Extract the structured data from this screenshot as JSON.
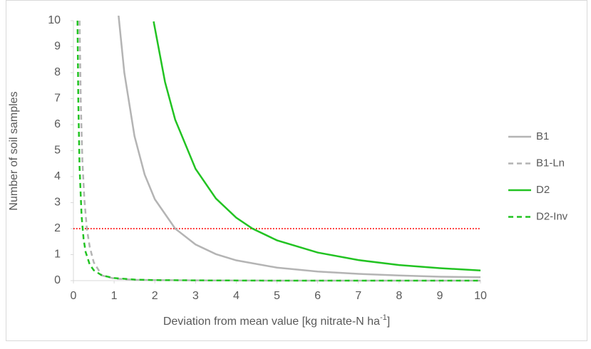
{
  "chart_data": {
    "type": "line",
    "ylabel": "Number of soil samples",
    "xlabel": {
      "text": "Deviation from mean value [kg nitrate-N ha",
      "sup": "-1",
      "end": "]"
    },
    "xlim": [
      0,
      10
    ],
    "xticks": [
      0,
      1,
      2,
      3,
      4,
      5,
      6,
      7,
      8,
      9,
      10
    ],
    "ylim": [
      0,
      10
    ],
    "yticks": [
      0,
      1,
      2,
      3,
      4,
      5,
      6,
      7,
      8,
      9,
      10
    ],
    "reference_line": {
      "value": 2,
      "color": "#ff0000"
    },
    "legend": "right",
    "series": [
      {
        "name": "B1",
        "color": "#b4b4b4",
        "dashed": false,
        "x": [
          1.1,
          1.25,
          1.5,
          1.75,
          2,
          2.5,
          3,
          3.5,
          4,
          5,
          6,
          7,
          8,
          9,
          10
        ],
        "values": [
          10.33,
          8,
          5.56,
          4.08,
          3.13,
          2,
          1.39,
          1.02,
          0.78,
          0.5,
          0.35,
          0.26,
          0.2,
          0.15,
          0.13
        ]
      },
      {
        "name": "B1-Ln",
        "color": "#b4b4b4",
        "dashed": true,
        "x": [
          0.15,
          0.18,
          0.22,
          0.27,
          0.33,
          0.4,
          0.5,
          0.7,
          1,
          1.5,
          2,
          3,
          5,
          10
        ],
        "values": [
          10,
          6.9,
          4.6,
          3.1,
          2,
          1.3,
          0.7,
          0.2,
          0.08,
          0.03,
          0.02,
          0.01,
          0,
          0
        ]
      },
      {
        "name": "D2",
        "color": "#22c322",
        "dashed": false,
        "x": [
          1.97,
          2.25,
          2.5,
          3,
          3.5,
          4,
          4.4,
          5,
          6,
          7,
          8,
          9,
          10
        ],
        "values": [
          9.97,
          7.64,
          6.19,
          4.3,
          3.16,
          2.42,
          2,
          1.55,
          1.08,
          0.79,
          0.6,
          0.48,
          0.39
        ]
      },
      {
        "name": "D2-Inv",
        "color": "#22c322",
        "dashed": true,
        "x": [
          0.1,
          0.12,
          0.15,
          0.2,
          0.25,
          0.3,
          0.4,
          0.5,
          0.7,
          1,
          1.5,
          2,
          3,
          5,
          10
        ],
        "values": [
          10,
          6.9,
          4.4,
          2.5,
          1.6,
          1.1,
          0.62,
          0.4,
          0.2,
          0.1,
          0.04,
          0.02,
          0.01,
          0,
          0
        ]
      }
    ]
  }
}
